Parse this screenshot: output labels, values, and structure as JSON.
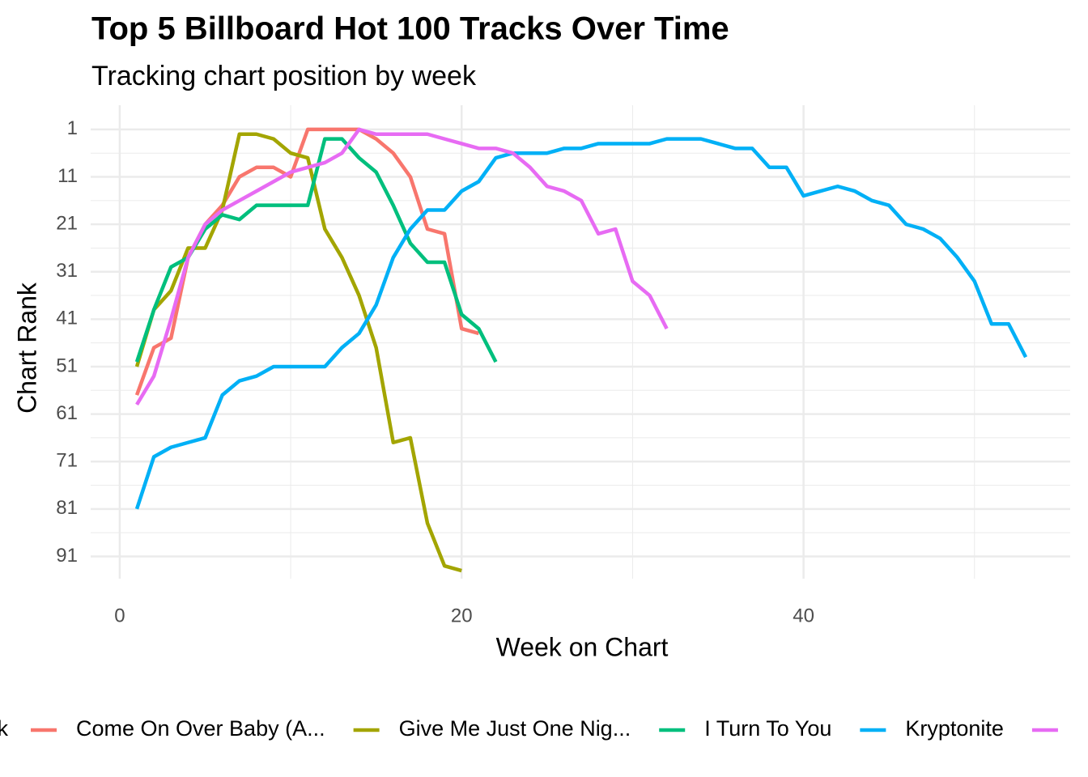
{
  "chart_data": {
    "type": "line",
    "title": "Top 5 Billboard Hot 100 Tracks Over Time",
    "subtitle": "Tracking chart position by week",
    "x_label": "Week on Chart",
    "y_label": "Chart Rank",
    "legend_title": "k",
    "legend_position": "bottom",
    "y_reversed": true,
    "grid": true,
    "xlim": [
      -1.7,
      55.6
    ],
    "ylim": [
      -4.1,
      95.7
    ],
    "xticks": [
      0,
      20,
      40
    ],
    "yticks": [
      1,
      11,
      21,
      31,
      41,
      51,
      61,
      71,
      81,
      91
    ],
    "x_minor_ticks": [
      10,
      30,
      50
    ],
    "y_minor_ticks": [
      6,
      16,
      26,
      36,
      46,
      56,
      66,
      76,
      86
    ],
    "x": [
      1,
      2,
      3,
      4,
      5,
      6,
      7,
      8,
      9,
      10,
      11,
      12,
      13,
      14,
      15,
      16,
      17,
      18,
      19,
      20,
      21,
      22,
      23,
      24,
      25,
      26,
      27,
      28,
      29,
      30,
      31,
      32,
      33,
      34,
      35,
      36,
      37,
      38,
      39,
      40,
      41,
      42,
      43,
      44,
      45,
      46,
      47,
      48,
      49,
      50,
      51,
      52,
      53
    ],
    "series": [
      {
        "name": "Come On Over Baby (A...",
        "color": "#F8766D",
        "values": [
          57,
          47,
          45,
          28,
          21,
          17,
          11,
          9,
          9,
          11,
          1,
          1,
          1,
          1,
          3,
          6,
          11,
          22,
          23,
          43,
          44,
          null,
          null,
          null,
          null,
          null,
          null,
          null,
          null,
          null,
          null,
          null,
          null,
          null,
          null,
          null,
          null,
          null,
          null,
          null,
          null,
          null,
          null,
          null,
          null,
          null,
          null,
          null,
          null,
          null,
          null,
          null,
          null
        ]
      },
      {
        "name": "Give Me Just One Nig...",
        "color": "#A3A500",
        "values": [
          51,
          39,
          35,
          26,
          26,
          18,
          2,
          2,
          3,
          6,
          7,
          22,
          28,
          36,
          47,
          67,
          66,
          84,
          93,
          94,
          null,
          null,
          null,
          null,
          null,
          null,
          null,
          null,
          null,
          null,
          null,
          null,
          null,
          null,
          null,
          null,
          null,
          null,
          null,
          null,
          null,
          null,
          null,
          null,
          null,
          null,
          null,
          null,
          null,
          null,
          null,
          null,
          null
        ]
      },
      {
        "name": "I Turn To You",
        "color": "#00BF7D",
        "values": [
          50,
          39,
          30,
          28,
          22,
          19,
          20,
          17,
          17,
          17,
          17,
          3,
          3,
          7,
          10,
          17,
          25,
          29,
          29,
          40,
          43,
          50,
          null,
          null,
          null,
          null,
          null,
          null,
          null,
          null,
          null,
          null,
          null,
          null,
          null,
          null,
          null,
          null,
          null,
          null,
          null,
          null,
          null,
          null,
          null,
          null,
          null,
          null,
          null,
          null,
          null,
          null,
          null
        ]
      },
      {
        "name": "Kryptonite",
        "color": "#00B0F6",
        "values": [
          81,
          70,
          68,
          67,
          66,
          57,
          54,
          53,
          51,
          51,
          51,
          51,
          47,
          44,
          38,
          28,
          22,
          18,
          18,
          14,
          12,
          7,
          6,
          6,
          6,
          5,
          5,
          4,
          4,
          4,
          4,
          3,
          3,
          3,
          4,
          5,
          5,
          9,
          9,
          15,
          14,
          13,
          14,
          16,
          17,
          21,
          22,
          24,
          28,
          33,
          42,
          42,
          49
        ]
      },
      {
        "color": "#E76BF3",
        "values": [
          59,
          53,
          41,
          28,
          21,
          18,
          16,
          14,
          12,
          10,
          9,
          8,
          6,
          1,
          2,
          2,
          2,
          2,
          3,
          4,
          5,
          5,
          6,
          9,
          13,
          14,
          16,
          23,
          22,
          33,
          36,
          43,
          null,
          null,
          null,
          null,
          null,
          null,
          null,
          null,
          null,
          null,
          null,
          null,
          null,
          null,
          null,
          null,
          null,
          null,
          null,
          null,
          null
        ]
      }
    ]
  }
}
